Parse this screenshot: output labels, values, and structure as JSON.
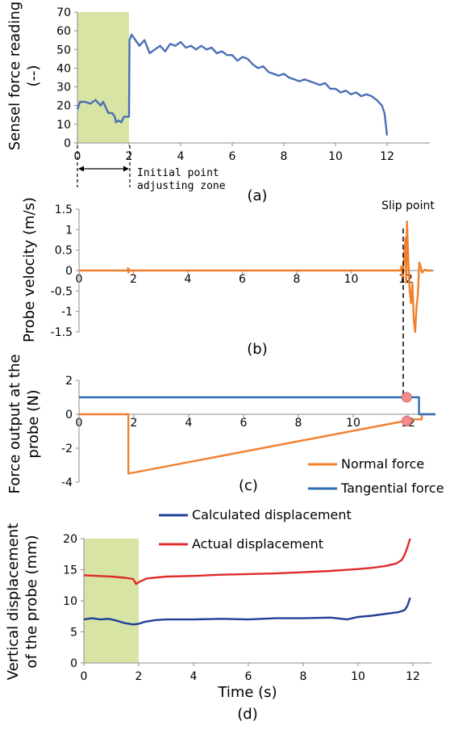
{
  "chart_data": [
    {
      "type": "line",
      "panel_label": "(a)",
      "ylabel_lines": [
        "Sensel force reading",
        "(--)"
      ],
      "xlim": [
        0,
        12
      ],
      "ylim": [
        0,
        70
      ],
      "xticks": [
        "0",
        "2",
        "4",
        "6",
        "8",
        "10",
        "12"
      ],
      "yticks": [
        "0",
        "10",
        "20",
        "30",
        "40",
        "50",
        "60",
        "70"
      ],
      "shaded_region": {
        "x": [
          0,
          2
        ],
        "color": "#d7e4a4"
      },
      "annotation_lines": [
        "Initial point",
        "adjusting zone"
      ],
      "series": [
        {
          "color": "#4a6fb5",
          "points": [
            [
              0,
              18
            ],
            [
              0.1,
              22
            ],
            [
              0.3,
              22
            ],
            [
              0.5,
              21
            ],
            [
              0.7,
              23
            ],
            [
              0.9,
              20
            ],
            [
              1.0,
              22
            ],
            [
              1.1,
              19
            ],
            [
              1.2,
              16
            ],
            [
              1.35,
              16
            ],
            [
              1.45,
              14
            ],
            [
              1.5,
              11
            ],
            [
              1.6,
              12
            ],
            [
              1.7,
              11
            ],
            [
              1.8,
              14
            ],
            [
              1.95,
              14
            ],
            [
              2.0,
              14
            ],
            [
              2.02,
              55
            ],
            [
              2.1,
              58
            ],
            [
              2.2,
              56
            ],
            [
              2.4,
              52
            ],
            [
              2.6,
              55
            ],
            [
              2.8,
              48
            ],
            [
              3.0,
              50
            ],
            [
              3.2,
              52
            ],
            [
              3.4,
              49
            ],
            [
              3.6,
              53
            ],
            [
              3.8,
              52
            ],
            [
              4.0,
              54
            ],
            [
              4.2,
              51
            ],
            [
              4.4,
              52
            ],
            [
              4.6,
              50
            ],
            [
              4.8,
              52
            ],
            [
              5.0,
              50
            ],
            [
              5.2,
              51
            ],
            [
              5.4,
              48
            ],
            [
              5.6,
              49
            ],
            [
              5.8,
              47
            ],
            [
              6.0,
              47
            ],
            [
              6.2,
              44
            ],
            [
              6.4,
              46
            ],
            [
              6.6,
              45
            ],
            [
              6.8,
              42
            ],
            [
              7.0,
              40
            ],
            [
              7.2,
              41
            ],
            [
              7.4,
              38
            ],
            [
              7.6,
              37
            ],
            [
              7.8,
              36
            ],
            [
              8.0,
              37
            ],
            [
              8.2,
              35
            ],
            [
              8.4,
              34
            ],
            [
              8.6,
              33
            ],
            [
              8.8,
              34
            ],
            [
              9.0,
              33
            ],
            [
              9.2,
              32
            ],
            [
              9.4,
              31
            ],
            [
              9.6,
              32
            ],
            [
              9.8,
              29
            ],
            [
              10.0,
              29
            ],
            [
              10.2,
              27
            ],
            [
              10.4,
              28
            ],
            [
              10.6,
              26
            ],
            [
              10.8,
              27
            ],
            [
              11.0,
              25
            ],
            [
              11.2,
              26
            ],
            [
              11.4,
              25
            ],
            [
              11.6,
              23
            ],
            [
              11.8,
              20
            ],
            [
              11.9,
              16
            ],
            [
              11.95,
              10
            ],
            [
              12.0,
              4
            ]
          ]
        }
      ]
    },
    {
      "type": "line",
      "panel_label": "(b)",
      "ylabel_lines": [
        "Probe velocity (m/s)"
      ],
      "xlim": [
        0,
        13
      ],
      "ylim": [
        -1.5,
        1.5
      ],
      "xticks": [
        "0",
        "2",
        "4",
        "6",
        "8",
        "10",
        "12"
      ],
      "yticks": [
        "1.5",
        "1",
        "0.5",
        "0",
        "-0.5",
        "-1",
        "-1.5"
      ],
      "annotation": "Slip point",
      "series": [
        {
          "color": "#f07f2c",
          "points": [
            [
              0,
              0
            ],
            [
              1.78,
              0
            ],
            [
              1.8,
              0.06
            ],
            [
              1.82,
              -0.05
            ],
            [
              1.84,
              0.03
            ],
            [
              1.86,
              0
            ],
            [
              11.8,
              0
            ],
            [
              11.85,
              0.1
            ],
            [
              11.9,
              -0.2
            ],
            [
              11.95,
              0.4
            ],
            [
              12.0,
              0.8
            ],
            [
              12.02,
              -0.3
            ],
            [
              12.05,
              1.2
            ],
            [
              12.1,
              0.2
            ],
            [
              12.15,
              -0.5
            ],
            [
              12.2,
              -0.8
            ],
            [
              12.25,
              -0.3
            ],
            [
              12.3,
              -1.2
            ],
            [
              12.35,
              -1.5
            ],
            [
              12.4,
              -0.9
            ],
            [
              12.45,
              -0.6
            ],
            [
              12.5,
              0.2
            ],
            [
              12.55,
              0.1
            ],
            [
              12.6,
              -0.05
            ],
            [
              12.7,
              0.02
            ],
            [
              12.8,
              0
            ],
            [
              13.0,
              0
            ]
          ]
        }
      ]
    },
    {
      "type": "line",
      "panel_label": "(c)",
      "ylabel_lines": [
        "Force output at the",
        "probe (N)"
      ],
      "xlim": [
        0,
        13
      ],
      "ylim": [
        -4,
        2
      ],
      "xticks": [
        "0",
        "2",
        "4",
        "6",
        "8",
        "10",
        "12"
      ],
      "yticks": [
        "2",
        "0",
        "-2",
        "-4"
      ],
      "legend": [
        "Normal force",
        "Tangential force"
      ],
      "series": [
        {
          "name": "Normal force",
          "color": "#f07f2c",
          "points": [
            [
              0,
              0
            ],
            [
              1.8,
              0
            ],
            [
              1.8,
              -3.5
            ],
            [
              12.2,
              -0.3
            ],
            [
              12.5,
              -0.3
            ],
            [
              12.5,
              0
            ],
            [
              13.0,
              0
            ]
          ]
        },
        {
          "name": "Tangential force",
          "color": "#2e6db4",
          "points": [
            [
              0,
              1.0
            ],
            [
              12.4,
              1.0
            ],
            [
              12.4,
              0
            ],
            [
              13.0,
              0
            ]
          ]
        }
      ],
      "marker_points": [
        [
          11.95,
          1.0
        ],
        [
          11.95,
          -0.4
        ]
      ],
      "marker_color": "#f28b8b"
    },
    {
      "type": "line",
      "panel_label": "(d)",
      "ylabel_lines": [
        "Vertical displacement",
        "of the probe (mm)"
      ],
      "xlabel": "Time (s)",
      "xlim": [
        0,
        14
      ],
      "ylim": [
        0,
        20
      ],
      "xticks": [
        "0",
        "2",
        "4",
        "6",
        "8",
        "10",
        "12"
      ],
      "yticks": [
        "0",
        "5",
        "10",
        "15",
        "20"
      ],
      "shaded_region": {
        "x": [
          0,
          2
        ],
        "color": "#d7e4a4"
      },
      "legend": [
        "Calculated displacement",
        "Actual displacement"
      ],
      "series": [
        {
          "name": "Calculated displacement",
          "color": "#1f3f99",
          "points": [
            [
              0,
              7.0
            ],
            [
              0.3,
              7.2
            ],
            [
              0.6,
              7.0
            ],
            [
              0.9,
              7.1
            ],
            [
              1.2,
              6.8
            ],
            [
              1.5,
              6.4
            ],
            [
              1.8,
              6.2
            ],
            [
              2.0,
              6.3
            ],
            [
              2.2,
              6.6
            ],
            [
              2.6,
              6.9
            ],
            [
              3.0,
              7.0
            ],
            [
              4.0,
              7.0
            ],
            [
              5.0,
              7.1
            ],
            [
              6.0,
              7.0
            ],
            [
              7.0,
              7.2
            ],
            [
              8.0,
              7.2
            ],
            [
              9.0,
              7.3
            ],
            [
              9.6,
              7.0
            ],
            [
              10.0,
              7.4
            ],
            [
              10.5,
              7.6
            ],
            [
              11.0,
              7.9
            ],
            [
              11.5,
              8.2
            ],
            [
              11.7,
              8.5
            ],
            [
              11.8,
              9.2
            ],
            [
              11.9,
              10.5
            ]
          ]
        },
        {
          "name": "Actual displacement",
          "color": "#e02b2b",
          "points": [
            [
              0,
              14.1
            ],
            [
              0.5,
              14.0
            ],
            [
              1.0,
              13.9
            ],
            [
              1.5,
              13.7
            ],
            [
              1.8,
              13.5
            ],
            [
              1.9,
              12.7
            ],
            [
              2.0,
              13.0
            ],
            [
              2.3,
              13.6
            ],
            [
              3.0,
              13.9
            ],
            [
              4.0,
              14.0
            ],
            [
              5.0,
              14.2
            ],
            [
              6.0,
              14.3
            ],
            [
              7.0,
              14.4
            ],
            [
              8.0,
              14.6
            ],
            [
              9.0,
              14.8
            ],
            [
              10.0,
              15.1
            ],
            [
              10.5,
              15.3
            ],
            [
              11.0,
              15.6
            ],
            [
              11.4,
              16.0
            ],
            [
              11.6,
              16.6
            ],
            [
              11.7,
              17.4
            ],
            [
              11.8,
              18.6
            ],
            [
              11.9,
              20.0
            ]
          ]
        }
      ]
    }
  ]
}
